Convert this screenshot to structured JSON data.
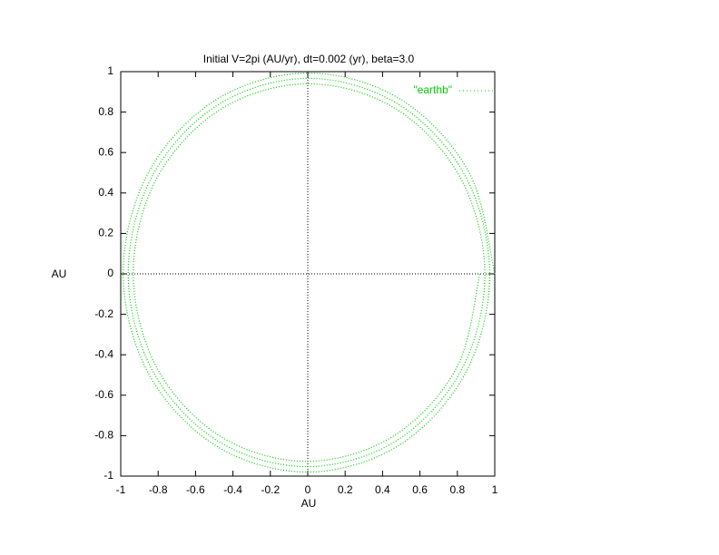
{
  "chart_data": {
    "type": "line",
    "title": "Initial V=2pi (AU/yr), dt=0.002 (yr), beta=3.0",
    "x_label": "AU",
    "y_label": "AU",
    "xlim": [
      -1,
      1
    ],
    "ylim": [
      -1,
      1
    ],
    "xticks": [
      -1,
      -0.8,
      -0.6,
      -0.4,
      -0.2,
      0,
      0.2,
      0.4,
      0.6,
      0.8,
      1
    ],
    "yticks": [
      -1,
      -0.8,
      -0.6,
      -0.4,
      -0.2,
      0,
      0.2,
      0.4,
      0.6,
      0.8,
      1
    ],
    "zero_axes": true,
    "legend_position": "top-right",
    "series": [
      {
        "name": "\"earthb\"",
        "color": "#00cc00",
        "x": [
          1,
          0.864,
          0.498,
          0,
          -0.496,
          -0.856,
          -0.987,
          -0.852,
          -0.491,
          0,
          0.489,
          0.845,
          0.973,
          0.841,
          0.484,
          0,
          -0.482,
          -0.833,
          -0.96,
          -0.83,
          -0.478,
          0,
          0.476,
          0.822,
          0.947,
          0.818,
          0.471,
          0,
          -0.469,
          -0.81,
          -0.933,
          -0.806,
          -0.464,
          0,
          0.462,
          0.798,
          0.92
        ],
        "values": [
          0,
          0.499,
          0.862,
          0.993,
          0.858,
          0.494,
          0,
          -0.492,
          -0.85,
          -0.98,
          -0.847,
          -0.488,
          0,
          0.486,
          0.839,
          0.967,
          0.835,
          0.481,
          0,
          -0.479,
          -0.828,
          -0.953,
          -0.824,
          -0.474,
          0,
          0.472,
          0.816,
          0.94,
          0.812,
          0.468,
          0,
          -0.466,
          -0.805,
          -0.927,
          -0.8,
          -0.461,
          0
        ]
      }
    ]
  }
}
